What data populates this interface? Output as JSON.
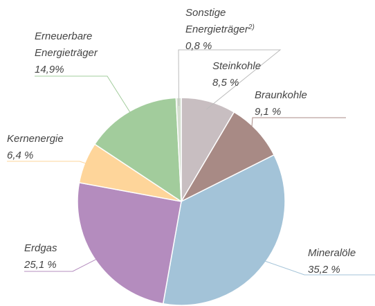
{
  "chart_data": {
    "type": "pie",
    "categories": [
      "Steinkohle",
      "Braunkohle",
      "Mineralöle",
      "Erdgas",
      "Kernenergie",
      "Erneuerbare\nEnergieträger",
      "Sonstige\nEnergieträger"
    ],
    "category_footnotes": [
      null,
      null,
      null,
      null,
      null,
      null,
      "2)"
    ],
    "values": [
      8.5,
      9.1,
      35.2,
      25.1,
      6.4,
      14.9,
      0.8
    ],
    "value_labels": [
      "8,5 %",
      "9,1 %",
      "35,2 %",
      "25,1 %",
      "6,4 %",
      "14,9%",
      "0,8 %"
    ],
    "colors": [
      "#c8bec1",
      "#a88a85",
      "#a3c3d8",
      "#b48cbe",
      "#fed59a",
      "#a2cc9c",
      "#d5dfd0"
    ]
  }
}
